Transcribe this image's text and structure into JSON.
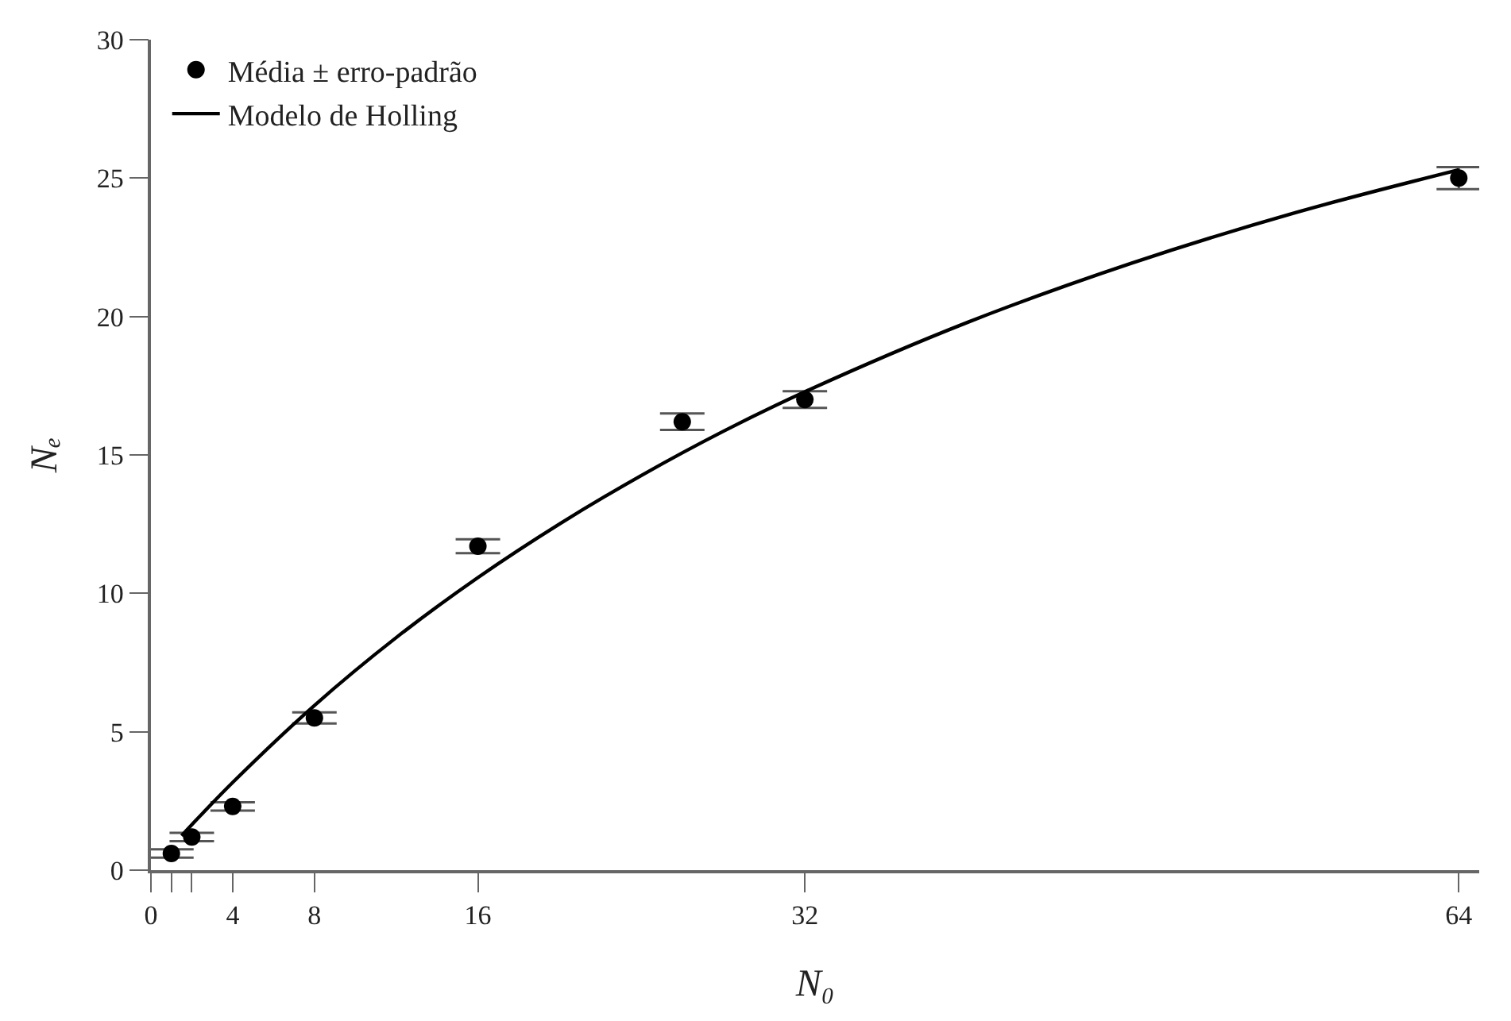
{
  "chart_data": {
    "type": "scatter",
    "xlabel": "N₀",
    "ylabel": "Nₑ",
    "xlim": [
      0,
      65
    ],
    "ylim": [
      0,
      30
    ],
    "xticks": [
      0,
      {
        "value": 1,
        "label": null
      },
      {
        "value": 2,
        "label": null
      },
      4,
      8,
      16,
      32,
      64
    ],
    "yticks": [
      0,
      5,
      10,
      15,
      20,
      25,
      30
    ],
    "legend": "top left",
    "series": [
      {
        "name": "Média ± erro-padrão",
        "marker": "circle",
        "color": "#000000",
        "x": [
          1,
          2,
          4,
          8,
          16,
          26,
          32,
          64
        ],
        "values": [
          0.6,
          1.2,
          2.3,
          5.5,
          11.7,
          16.2,
          17.0,
          25.0
        ],
        "errors": [
          0.15,
          0.15,
          0.15,
          0.2,
          0.25,
          0.3,
          0.3,
          0.4
        ]
      },
      {
        "name": "Modelo de Holling",
        "type": "line",
        "marker": "none",
        "line_style": "solid",
        "color": "#000000",
        "x": [
          1.5,
          2,
          4,
          8,
          12,
          16,
          20,
          24,
          28,
          32,
          40,
          48,
          56,
          64
        ],
        "values": [
          1.24,
          1.64,
          3.17,
          5.95,
          8.4,
          10.57,
          12.51,
          14.26,
          15.85,
          17.28,
          19.8,
          21.93,
          23.75,
          25.3
        ]
      }
    ]
  }
}
